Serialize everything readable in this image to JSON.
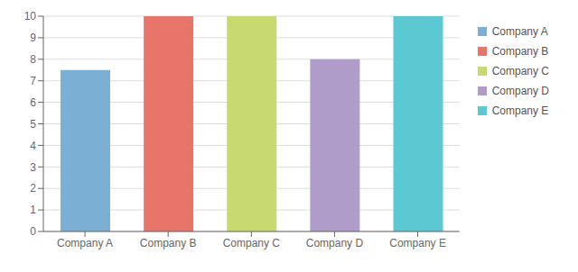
{
  "chart_data": {
    "type": "bar",
    "categories": [
      "Company A",
      "Company B",
      "Company C",
      "Company D",
      "Company E"
    ],
    "values": [
      7.5,
      10,
      10,
      8,
      10
    ],
    "colors": [
      "#7bafd4",
      "#e8756a",
      "#c8d96f",
      "#b09cc8",
      "#5bc8d2"
    ],
    "ylim": [
      0,
      10
    ],
    "yticks": [
      0,
      1,
      2,
      3,
      4,
      5,
      6,
      7,
      8,
      9,
      10
    ],
    "grid": true,
    "legend": "right"
  }
}
